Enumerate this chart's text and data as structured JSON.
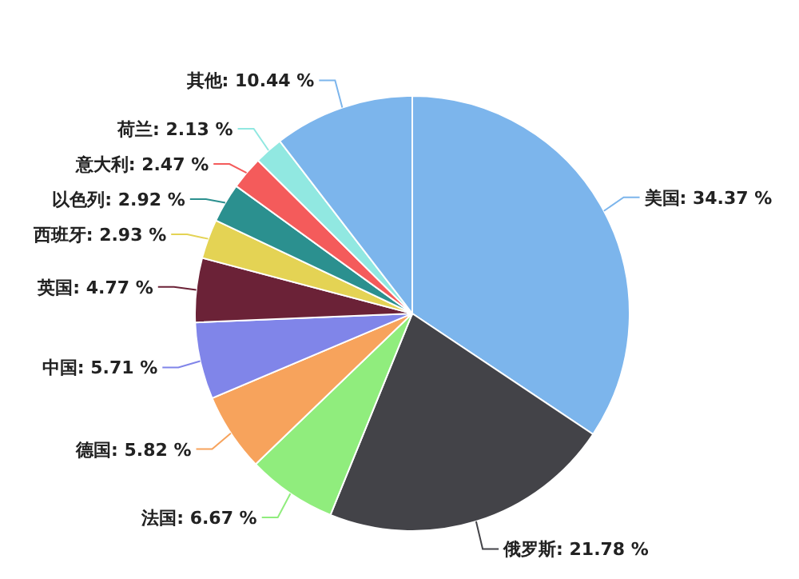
{
  "chart_data": {
    "type": "pie",
    "categories": [
      "美国",
      "俄罗斯",
      "法国",
      "德国",
      "中国",
      "英国",
      "西班牙",
      "以色列",
      "意大利",
      "荷兰",
      "其他"
    ],
    "values": [
      34.37,
      21.78,
      6.67,
      5.82,
      5.71,
      4.77,
      2.93,
      2.92,
      2.47,
      2.13,
      10.44
    ],
    "colors": [
      "#7cb5ec",
      "#434348",
      "#90ed7d",
      "#f7a35c",
      "#8085e9",
      "#6b2237",
      "#e4d354",
      "#2b908f",
      "#f45b5b",
      "#91e8e1",
      "#7cb5ec"
    ],
    "value_labels": [
      "34.37 %",
      "21.78 %",
      "6.67 %",
      "5.82 %",
      "5.71 %",
      "4.77 %",
      "2.93 %",
      "2.92 %",
      "2.47 %",
      "2.13 %",
      "10.44 %"
    ]
  }
}
